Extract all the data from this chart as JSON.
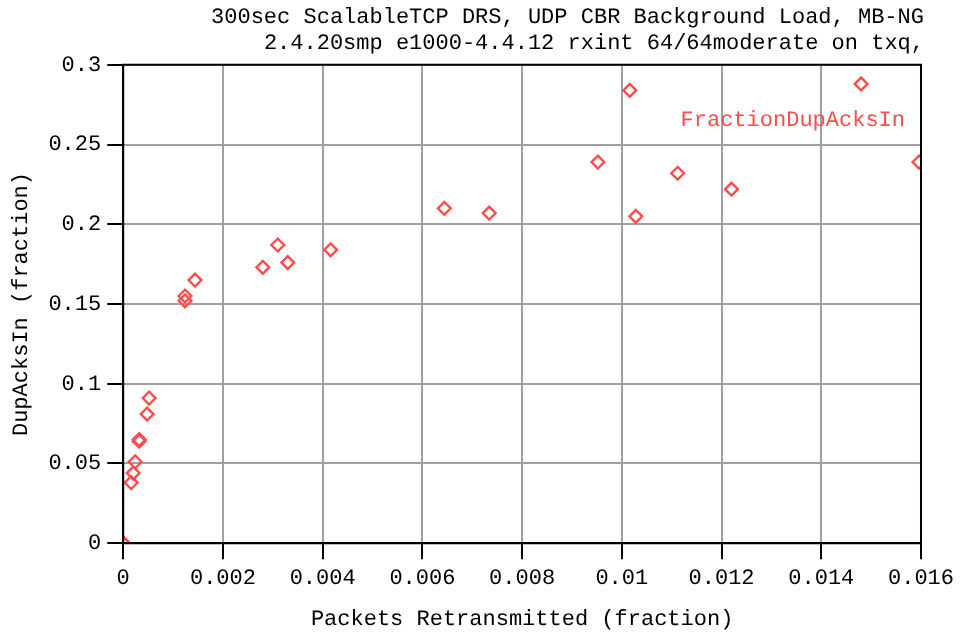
{
  "chart_data": {
    "type": "scatter",
    "title": "300sec ScalableTCP DRS, UDP CBR Background Load, MB-NG\n2.4.20smp e1000-4.4.12 rxint 64/64moderate on txq,",
    "xlabel": "Packets Retransmitted (fraction)",
    "ylabel": "DupAcksIn (fraction)",
    "x": [
      0,
      0,
      0.00016,
      0.0002,
      0.00024,
      0.00032,
      0.00032,
      0.00048,
      0.00052,
      0.00124,
      0.00124,
      0.00144,
      0.0028,
      0.0031,
      0.0033,
      0.00416,
      0.00644,
      0.00734,
      0.00952,
      0.01016,
      0.01028,
      0.01112,
      0.0122,
      0.0148,
      0.01596
    ],
    "series": [
      {
        "name": "FractionDupAcksIn",
        "color": "#ff4d4d",
        "values": [
          0,
          0,
          0.038,
          0.044,
          0.051,
          0.064,
          0.065,
          0.081,
          0.091,
          0.152,
          0.155,
          0.165,
          0.173,
          0.187,
          0.176,
          0.184,
          0.21,
          0.207,
          0.239,
          0.284,
          0.205,
          0.232,
          0.222,
          0.288,
          0.239
        ]
      }
    ],
    "xlim": [
      0,
      0.016
    ],
    "xticks": [
      0,
      0.002,
      0.004,
      0.006,
      0.008,
      0.01,
      0.012,
      0.014,
      0.016
    ],
    "ylim": [
      0,
      0.3
    ],
    "yticks": [
      0,
      0.05,
      0.1,
      0.15,
      0.2,
      0.25,
      0.3
    ],
    "grid": true,
    "legend": "top right",
    "marker": "diamond"
  }
}
